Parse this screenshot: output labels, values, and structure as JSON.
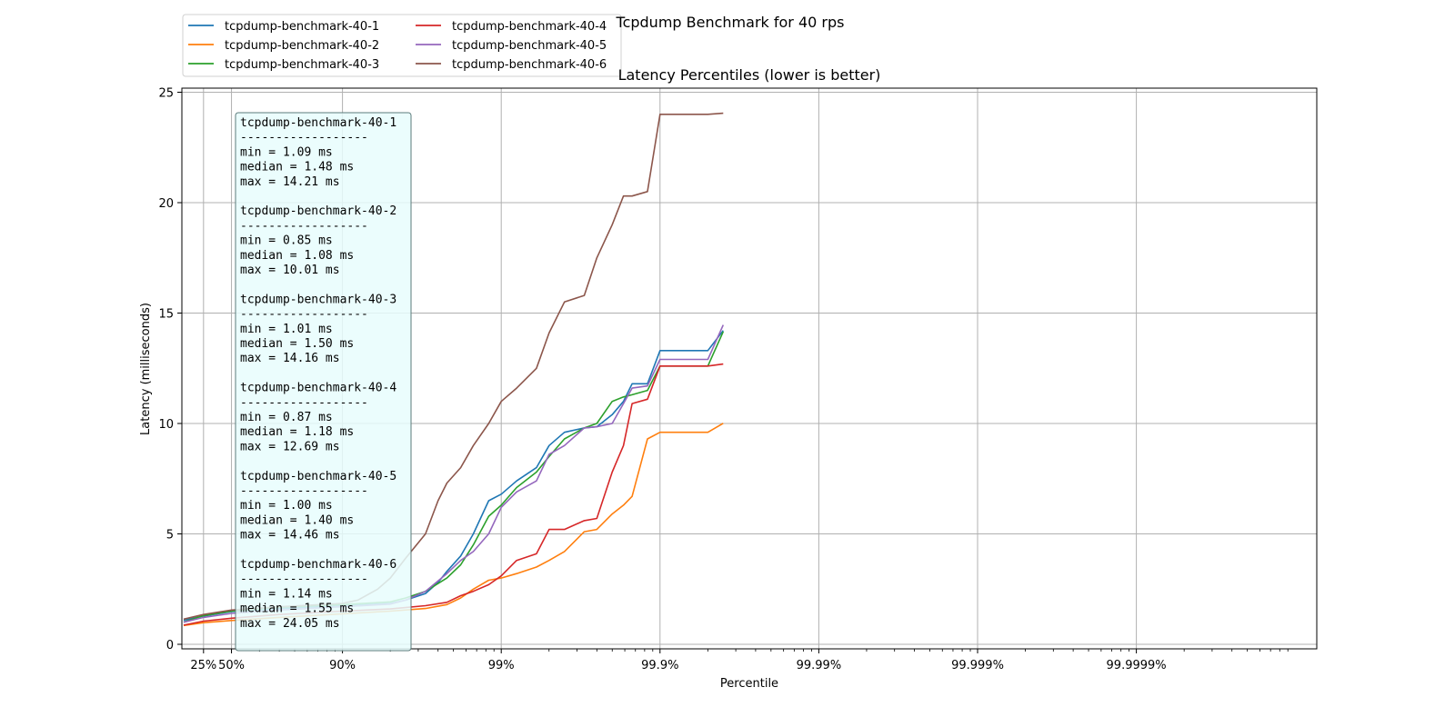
{
  "chart_data": {
    "type": "line",
    "title": "Tcpdump Benchmark for 40 rps",
    "subtitle": "Latency Percentiles (lower is better)",
    "xlabel": "Percentile",
    "ylabel": "Latency (milliseconds)",
    "x_scale": "log-inverse-percentile",
    "xlim": [
      "0%",
      "99.9999%"
    ],
    "ylim": [
      0,
      25
    ],
    "grid": true,
    "legend_position": "top-left (above plot, 2 columns)",
    "x_ticks": [
      "25%",
      "50%",
      "90%",
      "99%",
      "99.9%",
      "99.99%",
      "99.999%",
      "99.9999%"
    ],
    "y_ticks": [
      "0",
      "5",
      "10",
      "15",
      "20",
      "25"
    ],
    "series": [
      {
        "name": "tcpdump-benchmark-40-1",
        "color": "#1f77b4",
        "stats": {
          "min": "1.09",
          "median": "1.48",
          "max": "14.21"
        },
        "points": [
          [
            0,
            1.09
          ],
          [
            25,
            1.28
          ],
          [
            50,
            1.48
          ],
          [
            75,
            1.62
          ],
          [
            90,
            1.75
          ],
          [
            95,
            1.85
          ],
          [
            96,
            2.0
          ],
          [
            97,
            2.3
          ],
          [
            97.5,
            2.8
          ],
          [
            97.8,
            3.3
          ],
          [
            98.2,
            4.0
          ],
          [
            98.5,
            5.0
          ],
          [
            98.8,
            6.5
          ],
          [
            99.0,
            6.8
          ],
          [
            99.2,
            7.4
          ],
          [
            99.4,
            8.0
          ],
          [
            99.5,
            9.0
          ],
          [
            99.6,
            9.6
          ],
          [
            99.7,
            9.8
          ],
          [
            99.75,
            9.85
          ],
          [
            99.8,
            10.4
          ],
          [
            99.83,
            11.0
          ],
          [
            99.85,
            11.8
          ],
          [
            99.88,
            11.8
          ],
          [
            99.9,
            13.3
          ],
          [
            99.95,
            13.3
          ],
          [
            99.96,
            14.21
          ]
        ]
      },
      {
        "name": "tcpdump-benchmark-40-2",
        "color": "#ff7f0e",
        "stats": {
          "min": "0.85",
          "median": "1.08",
          "max": "10.01"
        },
        "points": [
          [
            0,
            0.85
          ],
          [
            25,
            0.98
          ],
          [
            50,
            1.08
          ],
          [
            75,
            1.22
          ],
          [
            90,
            1.38
          ],
          [
            95,
            1.5
          ],
          [
            97,
            1.62
          ],
          [
            97.8,
            1.8
          ],
          [
            98.2,
            2.1
          ],
          [
            98.5,
            2.5
          ],
          [
            98.8,
            2.9
          ],
          [
            99.0,
            3.0
          ],
          [
            99.2,
            3.2
          ],
          [
            99.4,
            3.5
          ],
          [
            99.5,
            3.8
          ],
          [
            99.6,
            4.2
          ],
          [
            99.7,
            5.1
          ],
          [
            99.75,
            5.2
          ],
          [
            99.8,
            5.9
          ],
          [
            99.83,
            6.3
          ],
          [
            99.85,
            6.7
          ],
          [
            99.88,
            9.3
          ],
          [
            99.9,
            9.6
          ],
          [
            99.95,
            9.6
          ],
          [
            99.96,
            10.01
          ]
        ]
      },
      {
        "name": "tcpdump-benchmark-40-3",
        "color": "#2ca02c",
        "stats": {
          "min": "1.01",
          "median": "1.50",
          "max": "14.16"
        },
        "points": [
          [
            0,
            1.01
          ],
          [
            25,
            1.3
          ],
          [
            50,
            1.5
          ],
          [
            75,
            1.68
          ],
          [
            90,
            1.8
          ],
          [
            95,
            1.92
          ],
          [
            96,
            2.1
          ],
          [
            97,
            2.4
          ],
          [
            97.8,
            3.0
          ],
          [
            98.2,
            3.6
          ],
          [
            98.5,
            4.5
          ],
          [
            98.8,
            5.8
          ],
          [
            99.0,
            6.3
          ],
          [
            99.2,
            7.1
          ],
          [
            99.4,
            7.8
          ],
          [
            99.5,
            8.5
          ],
          [
            99.6,
            9.3
          ],
          [
            99.7,
            9.8
          ],
          [
            99.75,
            10.0
          ],
          [
            99.8,
            11.0
          ],
          [
            99.83,
            11.2
          ],
          [
            99.85,
            11.3
          ],
          [
            99.88,
            11.5
          ],
          [
            99.9,
            12.6
          ],
          [
            99.95,
            12.6
          ],
          [
            99.96,
            14.16
          ]
        ]
      },
      {
        "name": "tcpdump-benchmark-40-4",
        "color": "#d62728",
        "stats": {
          "min": "0.87",
          "median": "1.18",
          "max": "12.69"
        },
        "points": [
          [
            0,
            0.87
          ],
          [
            25,
            1.05
          ],
          [
            50,
            1.18
          ],
          [
            75,
            1.35
          ],
          [
            90,
            1.5
          ],
          [
            95,
            1.6
          ],
          [
            97,
            1.75
          ],
          [
            97.8,
            1.9
          ],
          [
            98.2,
            2.2
          ],
          [
            98.5,
            2.4
          ],
          [
            98.8,
            2.7
          ],
          [
            99.0,
            3.1
          ],
          [
            99.2,
            3.8
          ],
          [
            99.4,
            4.1
          ],
          [
            99.5,
            5.2
          ],
          [
            99.6,
            5.2
          ],
          [
            99.7,
            5.6
          ],
          [
            99.75,
            5.7
          ],
          [
            99.8,
            7.8
          ],
          [
            99.83,
            9.0
          ],
          [
            99.85,
            10.9
          ],
          [
            99.88,
            11.1
          ],
          [
            99.9,
            12.6
          ],
          [
            99.95,
            12.6
          ],
          [
            99.96,
            12.69
          ]
        ]
      },
      {
        "name": "tcpdump-benchmark-40-5",
        "color": "#9467bd",
        "stats": {
          "min": "1.00",
          "median": "1.40",
          "max": "14.46"
        },
        "points": [
          [
            0,
            1.0
          ],
          [
            25,
            1.22
          ],
          [
            50,
            1.4
          ],
          [
            75,
            1.55
          ],
          [
            90,
            1.7
          ],
          [
            95,
            1.82
          ],
          [
            96,
            2.0
          ],
          [
            97,
            2.4
          ],
          [
            97.8,
            3.2
          ],
          [
            98.2,
            3.8
          ],
          [
            98.5,
            4.2
          ],
          [
            98.8,
            5.0
          ],
          [
            99.0,
            6.2
          ],
          [
            99.2,
            6.9
          ],
          [
            99.4,
            7.4
          ],
          [
            99.5,
            8.6
          ],
          [
            99.6,
            9.0
          ],
          [
            99.7,
            9.8
          ],
          [
            99.75,
            9.85
          ],
          [
            99.8,
            10.0
          ],
          [
            99.83,
            10.9
          ],
          [
            99.85,
            11.6
          ],
          [
            99.88,
            11.7
          ],
          [
            99.9,
            12.9
          ],
          [
            99.95,
            12.9
          ],
          [
            99.96,
            14.46
          ]
        ]
      },
      {
        "name": "tcpdump-benchmark-40-6",
        "color": "#8c564b",
        "stats": {
          "min": "1.14",
          "median": "1.55",
          "max": "24.05"
        },
        "points": [
          [
            0,
            1.14
          ],
          [
            25,
            1.35
          ],
          [
            50,
            1.55
          ],
          [
            75,
            1.7
          ],
          [
            90,
            1.85
          ],
          [
            92,
            2.0
          ],
          [
            94,
            2.5
          ],
          [
            95,
            3.0
          ],
          [
            96,
            3.9
          ],
          [
            97,
            5.0
          ],
          [
            97.5,
            6.5
          ],
          [
            97.8,
            7.3
          ],
          [
            98.2,
            8.0
          ],
          [
            98.5,
            9.0
          ],
          [
            98.8,
            10.0
          ],
          [
            99.0,
            11.0
          ],
          [
            99.2,
            11.6
          ],
          [
            99.4,
            12.5
          ],
          [
            99.5,
            14.1
          ],
          [
            99.6,
            15.5
          ],
          [
            99.7,
            15.8
          ],
          [
            99.75,
            17.5
          ],
          [
            99.8,
            19.0
          ],
          [
            99.83,
            20.3
          ],
          [
            99.85,
            20.3
          ],
          [
            99.88,
            20.5
          ],
          [
            99.9,
            24.0
          ],
          [
            99.95,
            24.0
          ],
          [
            99.96,
            24.05
          ]
        ]
      }
    ]
  },
  "stats_box": {
    "separator": "------------------",
    "min_label": "min    =",
    "median_label": "median =",
    "max_label": "max    =",
    "unit": "ms"
  }
}
